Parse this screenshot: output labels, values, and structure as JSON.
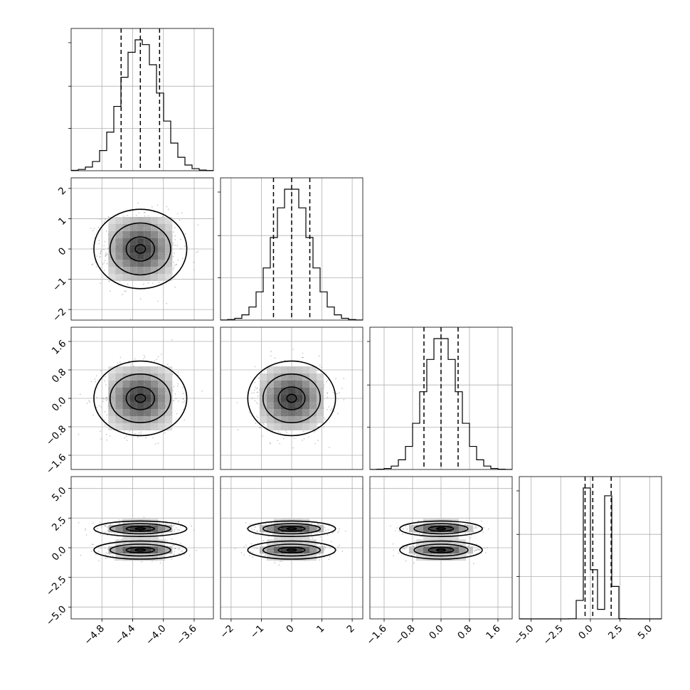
{
  "chart_data": {
    "type": "corner",
    "colors": {
      "line": "#000000",
      "grid": "#b0b0b0",
      "scatter": "#8c8c8c",
      "density_dark": "#1a1a1a"
    },
    "parameters": [
      {
        "range": [
          -5.2,
          -3.35
        ],
        "ticks": [
          -4.8,
          -4.4,
          -4.0,
          -3.6
        ],
        "tick_labels": [
          "−4.8",
          "−4.4",
          "−4.0",
          "−3.6"
        ],
        "mean": -4.3,
        "sigma": 0.25,
        "quantiles": [
          -4.55,
          -4.3,
          -4.05
        ]
      },
      {
        "range": [
          -2.35,
          2.35
        ],
        "ticks": [
          -2,
          -1,
          0,
          1,
          2
        ],
        "tick_labels": [
          "−2",
          "−1",
          "0",
          "1",
          "2"
        ],
        "mean": 0.0,
        "sigma": 0.6,
        "quantiles": [
          -0.6,
          0.0,
          0.6
        ]
      },
      {
        "range": [
          -2.0,
          2.0
        ],
        "ticks": [
          -1.6,
          -0.8,
          0.0,
          0.8,
          1.6
        ],
        "tick_labels": [
          "−1.6",
          "−0.8",
          "0.0",
          "0.8",
          "1.6"
        ],
        "mean": 0.0,
        "sigma": 0.48,
        "quantiles": [
          -0.48,
          0.0,
          0.48
        ]
      },
      {
        "range": [
          -6.0,
          6.0
        ],
        "ticks": [
          -5.0,
          -2.5,
          0.0,
          2.5,
          5.0
        ],
        "tick_labels": [
          "−5.0",
          "−2.5",
          "0.0",
          "2.5",
          "5.0"
        ],
        "mixture": [
          {
            "weight": 0.55,
            "mean": -0.2,
            "sigma": 0.35
          },
          {
            "weight": 0.45,
            "mean": 1.6,
            "sigma": 0.3
          }
        ],
        "quantiles": [
          -0.45,
          0.2,
          1.75
        ]
      }
    ],
    "histogram_bins": 20,
    "scatter_points_per_panel": 700,
    "grid": true,
    "xlabel": "",
    "ylabel": ""
  }
}
